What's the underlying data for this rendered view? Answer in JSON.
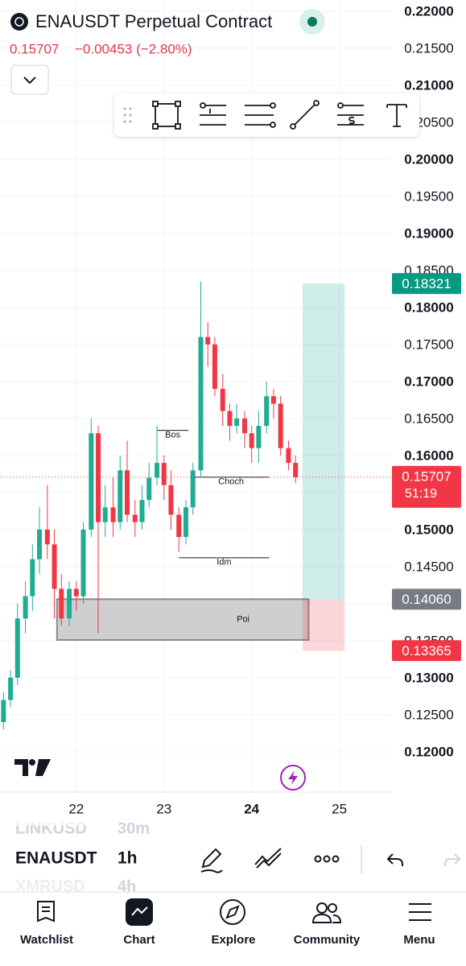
{
  "header": {
    "title": "ENAUSDT Perpetual Contract",
    "price": "0.15707",
    "change": "−0.00453 (−2.80%)"
  },
  "chart_data": {
    "type": "candlestick",
    "x": [
      21.17,
      21.25,
      21.33,
      21.42,
      21.5,
      21.58,
      21.67,
      21.75,
      21.83,
      21.92,
      22,
      22.08,
      22.17,
      22.25,
      22.33,
      22.42,
      22.5,
      22.58,
      22.67,
      22.75,
      22.83,
      22.92,
      23,
      23.08,
      23.17,
      23.25,
      23.33,
      23.42,
      23.5,
      23.58,
      23.67,
      23.75,
      23.83,
      23.92,
      24,
      24.08,
      24.17,
      24.25,
      24.33,
      24.42,
      24.5
    ],
    "open": [
      0.124,
      0.127,
      0.13,
      0.138,
      0.141,
      0.146,
      0.15,
      0.148,
      0.142,
      0.138,
      0.142,
      0.141,
      0.15,
      0.163,
      0.151,
      0.153,
      0.151,
      0.158,
      0.152,
      0.151,
      0.154,
      0.157,
      0.159,
      0.156,
      0.152,
      0.149,
      0.153,
      0.158,
      0.176,
      0.175,
      0.169,
      0.166,
      0.164,
      0.165,
      0.163,
      0.161,
      0.164,
      0.168,
      0.167,
      0.161,
      0.159
    ],
    "high": [
      0.128,
      0.131,
      0.14,
      0.143,
      0.148,
      0.153,
      0.156,
      0.15,
      0.144,
      0.143,
      0.143,
      0.151,
      0.165,
      0.164,
      0.156,
      0.157,
      0.16,
      0.162,
      0.154,
      0.156,
      0.159,
      0.164,
      0.16,
      0.158,
      0.153,
      0.154,
      0.159,
      0.1835,
      0.178,
      0.176,
      0.171,
      0.167,
      0.167,
      0.166,
      0.164,
      0.166,
      0.17,
      0.169,
      0.168,
      0.162,
      0.16
    ],
    "low": [
      0.123,
      0.126,
      0.129,
      0.136,
      0.139,
      0.144,
      0.146,
      0.138,
      0.137,
      0.137,
      0.139,
      0.14,
      0.149,
      0.136,
      0.149,
      0.149,
      0.15,
      0.151,
      0.149,
      0.15,
      0.153,
      0.156,
      0.154,
      0.15,
      0.147,
      0.148,
      0.152,
      0.157,
      0.172,
      0.168,
      0.164,
      0.162,
      0.163,
      0.161,
      0.159,
      0.159,
      0.163,
      0.165,
      0.16,
      0.158,
      0.1563
    ],
    "close": [
      0.127,
      0.13,
      0.138,
      0.141,
      0.146,
      0.15,
      0.148,
      0.142,
      0.138,
      0.142,
      0.141,
      0.15,
      0.163,
      0.151,
      0.153,
      0.151,
      0.158,
      0.152,
      0.151,
      0.154,
      0.157,
      0.159,
      0.156,
      0.152,
      0.149,
      0.153,
      0.158,
      0.176,
      0.175,
      0.169,
      0.166,
      0.164,
      0.165,
      0.163,
      0.161,
      0.164,
      0.168,
      0.167,
      0.161,
      0.159,
      0.15707
    ],
    "up_color": "#22ab94",
    "down_color": "#f23645",
    "xlim": [
      21.13,
      25.6
    ],
    "xticks": [
      22,
      23,
      24,
      25
    ],
    "ylim": [
      0.1139,
      0.2215
    ],
    "yticks": [
      {
        "value": 0.12,
        "label": "0.12000"
      },
      {
        "value": 0.125,
        "label": "0.12500"
      },
      {
        "value": 0.13,
        "label": "0.13000"
      },
      {
        "value": 0.135,
        "label": "0.13500"
      },
      {
        "value": 0.14,
        "label": "0.14000"
      },
      {
        "value": 0.145,
        "label": "0.14500"
      },
      {
        "value": 0.15,
        "label": "0.15000"
      },
      {
        "value": 0.155,
        "label": "0.15500"
      },
      {
        "value": 0.16,
        "label": "0.16000"
      },
      {
        "value": 0.165,
        "label": "0.16500"
      },
      {
        "value": 0.17,
        "label": "0.17000"
      },
      {
        "value": 0.175,
        "label": "0.17500"
      },
      {
        "value": 0.18,
        "label": "0.18000"
      },
      {
        "value": 0.185,
        "label": "0.18500"
      },
      {
        "value": 0.19,
        "label": "0.19000"
      },
      {
        "value": 0.195,
        "label": "0.19500"
      },
      {
        "value": 0.2,
        "label": "0.20000"
      },
      {
        "value": 0.205,
        "label": "0.20500"
      },
      {
        "value": 0.21,
        "label": "0.21000"
      },
      {
        "value": 0.215,
        "label": "0.21500"
      },
      {
        "value": 0.22,
        "label": "0.22000"
      }
    ],
    "grid": true,
    "current_price": 0.15707,
    "countdown": "51:19",
    "annotations": [
      {
        "text": "Bos",
        "price": 0.1634,
        "x_start": 22.92,
        "x_end": 23.28
      },
      {
        "text": "Choch",
        "price": 0.15707,
        "x_start": 23.33,
        "x_end": 24.2
      },
      {
        "text": "Idm",
        "price": 0.1462,
        "x_start": 23.17,
        "x_end": 24.2
      }
    ],
    "zone": {
      "text": "Poi",
      "top": 0.1406,
      "bottom": 0.1351,
      "x_start": 21.78,
      "x_end": 24.65
    },
    "position": {
      "x_start": 24.58,
      "x_end": 25.06,
      "target": 0.18321,
      "entry": {
        "value": 0.1406,
        "label": "0.14060"
      },
      "stop": 0.13365
    }
  },
  "symbols": [
    "LINKUSD",
    "ENAUSDT",
    "XMRUSD"
  ],
  "intervals": [
    "30m",
    "1h",
    "4h"
  ],
  "nav": [
    "Watchlist",
    "Chart",
    "Explore",
    "Community",
    "Menu"
  ]
}
